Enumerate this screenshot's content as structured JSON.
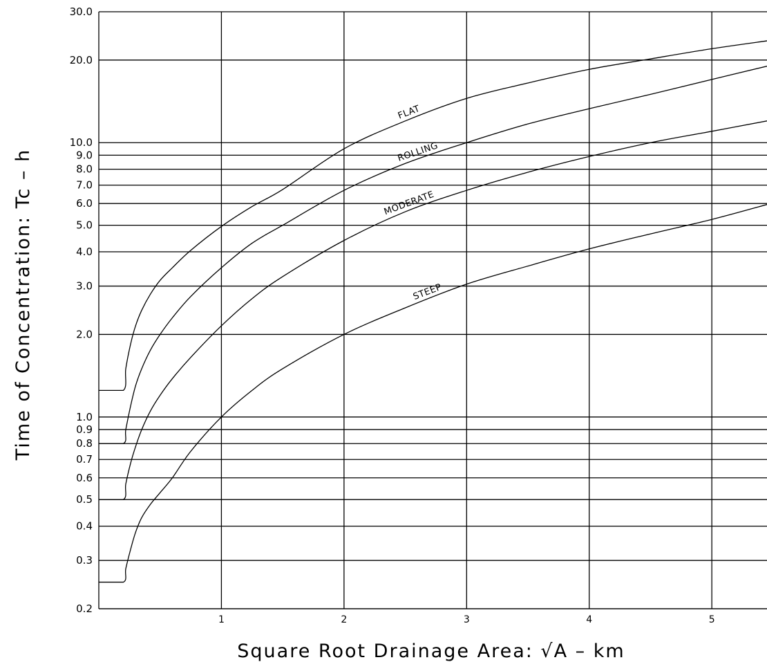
{
  "chart_data": {
    "type": "line",
    "xlabel": "Square Root Drainage Area: √A  – km",
    "ylabel": "Time of Concentration: Tc – h",
    "xlim": [
      0,
      5.45
    ],
    "ylim": [
      0.2,
      30.0
    ],
    "yscale": "log",
    "grid": true,
    "x_ticks": [
      "1",
      "2",
      "3",
      "4",
      "5"
    ],
    "y_ticks": [
      "0.2",
      "0.3",
      "0.4",
      "0.5",
      "0.6",
      "0.7",
      "0.8",
      "0.9",
      "1.0",
      "2.0",
      "3.0",
      "4.0",
      "5.0",
      "6.0",
      "7.0",
      "8.0",
      "9.0",
      "10.0",
      "20.0",
      "30.0"
    ],
    "series": [
      {
        "name": "FLAT",
        "x": [
          0.0,
          0.2,
          0.22,
          0.26,
          0.3,
          0.35,
          0.42,
          0.5,
          0.6,
          0.75,
          1.0,
          1.25,
          1.5,
          2.0,
          2.5,
          3.0,
          3.5,
          4.0,
          4.5,
          5.0,
          5.45
        ],
        "y": [
          1.25,
          1.25,
          1.5,
          1.85,
          2.15,
          2.45,
          2.8,
          3.15,
          3.5,
          4.05,
          4.95,
          5.85,
          6.75,
          9.5,
          12.0,
          14.5,
          16.5,
          18.5,
          20.2,
          22.0,
          23.5
        ]
      },
      {
        "name": "ROLLING",
        "x": [
          0.0,
          0.2,
          0.22,
          0.26,
          0.3,
          0.35,
          0.42,
          0.5,
          0.6,
          0.75,
          1.0,
          1.25,
          1.5,
          2.0,
          2.5,
          3.0,
          3.5,
          4.0,
          4.5,
          5.0,
          5.45
        ],
        "y": [
          0.8,
          0.8,
          0.9,
          1.1,
          1.3,
          1.5,
          1.75,
          2.0,
          2.3,
          2.75,
          3.5,
          4.3,
          5.0,
          6.7,
          8.4,
          10.0,
          11.7,
          13.3,
          15.0,
          17.0,
          19.0
        ]
      },
      {
        "name": "MODERATE",
        "x": [
          0.0,
          0.2,
          0.22,
          0.26,
          0.3,
          0.35,
          0.42,
          0.5,
          0.6,
          0.75,
          1.0,
          1.25,
          1.5,
          2.0,
          2.5,
          3.0,
          3.5,
          4.0,
          4.5,
          5.0,
          5.45
        ],
        "y": [
          0.5,
          0.5,
          0.57,
          0.68,
          0.78,
          0.9,
          1.05,
          1.2,
          1.38,
          1.65,
          2.15,
          2.7,
          3.25,
          4.4,
          5.6,
          6.7,
          7.8,
          8.9,
          10.0,
          11.0,
          12.0
        ]
      },
      {
        "name": "STEEP",
        "x": [
          0.0,
          0.2,
          0.22,
          0.26,
          0.3,
          0.35,
          0.42,
          0.5,
          0.6,
          0.75,
          1.0,
          1.25,
          1.5,
          2.0,
          2.5,
          3.0,
          3.5,
          4.0,
          4.5,
          5.0,
          5.45
        ],
        "y": [
          0.25,
          0.25,
          0.28,
          0.33,
          0.38,
          0.43,
          0.48,
          0.53,
          0.6,
          0.75,
          1.0,
          1.25,
          1.5,
          2.0,
          2.5,
          3.05,
          3.55,
          4.1,
          4.65,
          5.25,
          5.95
        ]
      }
    ]
  }
}
